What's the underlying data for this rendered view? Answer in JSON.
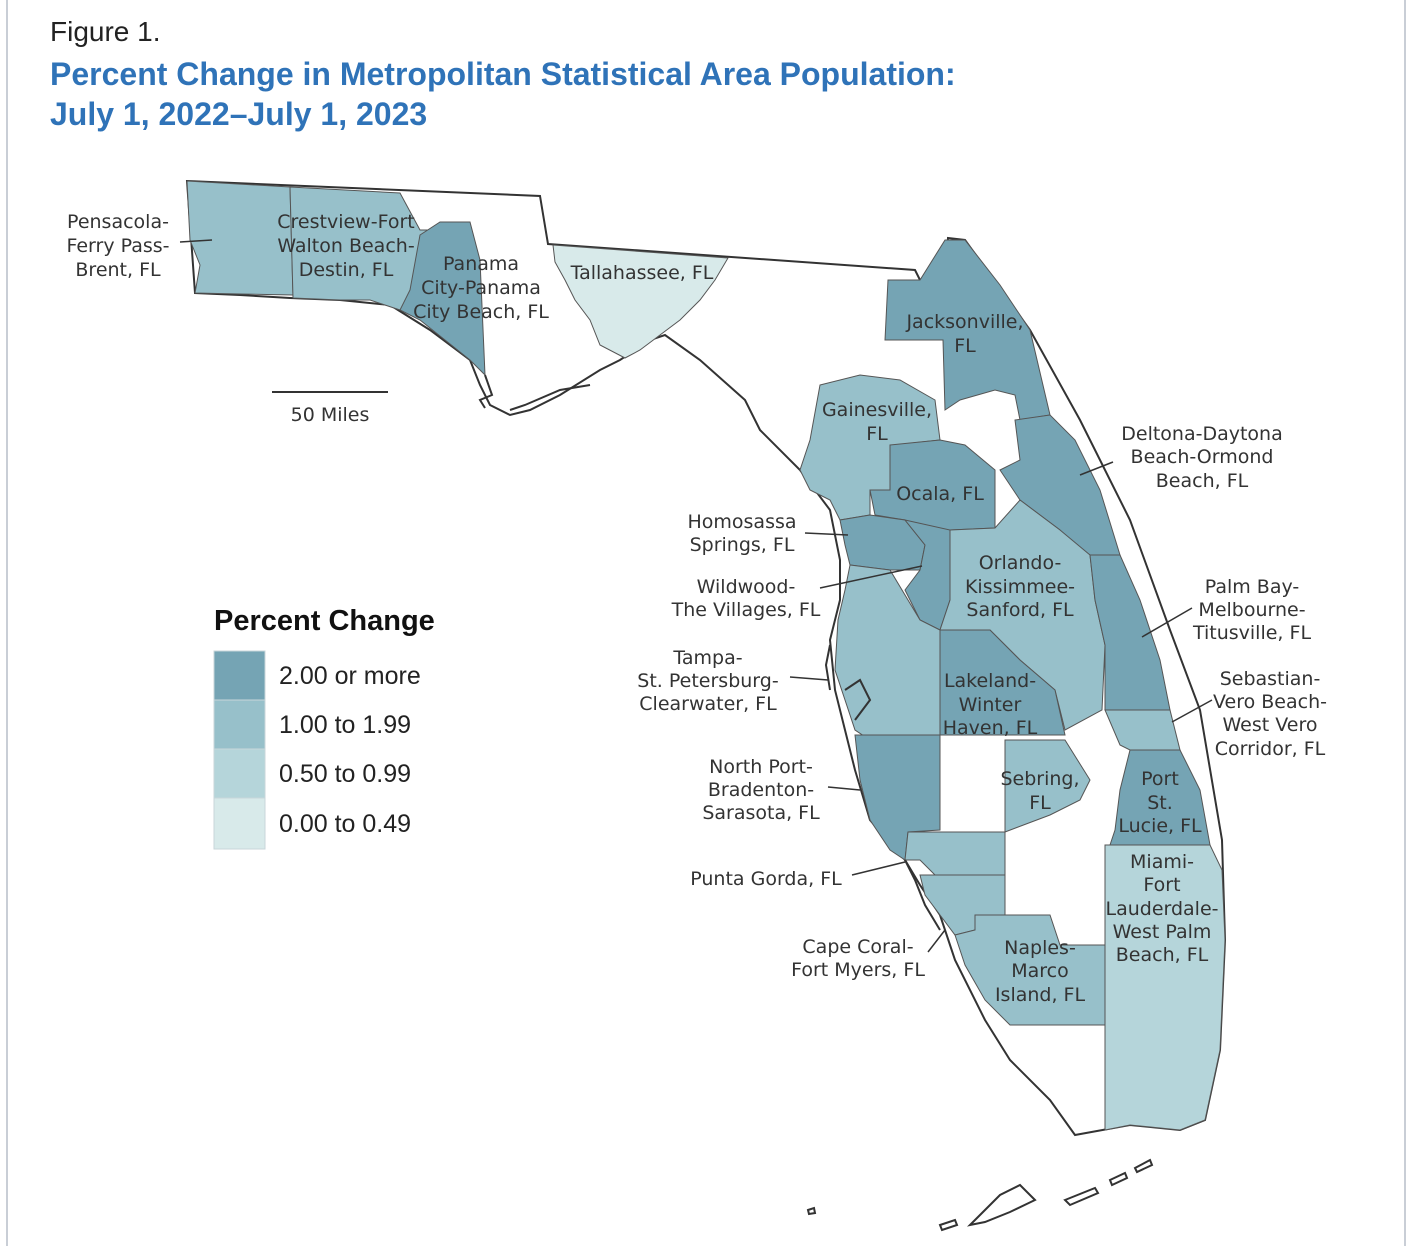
{
  "figure_label": "Figure 1.",
  "title_lines": [
    "Percent Change in Metropolitan Statistical Area Population:",
    "July 1, 2022–July 1, 2023"
  ],
  "legend": {
    "title": "Percent Change",
    "items": [
      {
        "label": "2.00 or more",
        "color": "#75a4b4"
      },
      {
        "label": "1.00 to 1.99",
        "color": "#97c0ca"
      },
      {
        "label": "0.50 to 0.99",
        "color": "#b5d5da"
      },
      {
        "label": "0.00 to 0.49",
        "color": "#d8eaea"
      }
    ]
  },
  "scale_bar": {
    "label": "50 Miles"
  },
  "colors": {
    "non_metro": "#ffffff",
    "border": "#333333",
    "title": "#2f73b8"
  },
  "areas": [
    {
      "id": "pensacola",
      "lines": [
        "Pensacola-",
        "Ferry Pass-",
        "Brent, FL"
      ],
      "class": "1.00 to 1.99"
    },
    {
      "id": "crestview",
      "lines": [
        "Crestview-Fort",
        "Walton Beach-",
        "Destin, FL"
      ],
      "class": "1.00 to 1.99"
    },
    {
      "id": "panama-city",
      "lines": [
        "Panama",
        "City-Panama",
        "City Beach, FL"
      ],
      "class": "2.00 or more"
    },
    {
      "id": "tallahassee",
      "lines": [
        "Tallahassee, FL"
      ],
      "class": "0.00 to 0.49"
    },
    {
      "id": "jacksonville",
      "lines": [
        "Jacksonville,",
        "FL"
      ],
      "class": "2.00 or more"
    },
    {
      "id": "gainesville",
      "lines": [
        "Gainesville,",
        "FL"
      ],
      "class": "1.00 to 1.99"
    },
    {
      "id": "deltona",
      "lines": [
        "Deltona-Daytona",
        "Beach-Ormond",
        "Beach, FL"
      ],
      "class": "2.00 or more"
    },
    {
      "id": "ocala",
      "lines": [
        "Ocala, FL"
      ],
      "class": "2.00 or more"
    },
    {
      "id": "homosassa",
      "lines": [
        "Homosassa",
        "Springs, FL"
      ],
      "class": "2.00 or more"
    },
    {
      "id": "wildwood",
      "lines": [
        "Wildwood-",
        "The Villages, FL"
      ],
      "class": "2.00 or more"
    },
    {
      "id": "orlando",
      "lines": [
        "Orlando-",
        "Kissimmee-",
        "Sanford, FL"
      ],
      "class": "1.00 to 1.99"
    },
    {
      "id": "palm-bay",
      "lines": [
        "Palm Bay-",
        "Melbourne-",
        "Titusville, FL"
      ],
      "class": "2.00 or more"
    },
    {
      "id": "tampa",
      "lines": [
        "Tampa-",
        "St. Petersburg-",
        "Clearwater, FL"
      ],
      "class": "1.00 to 1.99"
    },
    {
      "id": "lakeland",
      "lines": [
        "Lakeland-",
        "Winter",
        "Haven, FL"
      ],
      "class": "2.00 or more"
    },
    {
      "id": "sebastian",
      "lines": [
        "Sebastian-",
        "Vero Beach-",
        "West Vero",
        "Corridor, FL"
      ],
      "class": "1.00 to 1.99"
    },
    {
      "id": "north-port",
      "lines": [
        "North Port-",
        "Bradenton-",
        "Sarasota, FL"
      ],
      "class": "2.00 or more"
    },
    {
      "id": "sebring",
      "lines": [
        "Sebring,",
        "FL"
      ],
      "class": "1.00 to 1.99"
    },
    {
      "id": "port-st-lucie",
      "lines": [
        "Port",
        "St.",
        "Lucie, FL"
      ],
      "class": "2.00 or more"
    },
    {
      "id": "punta-gorda",
      "lines": [
        "Punta Gorda, FL"
      ],
      "class": "1.00 to 1.99"
    },
    {
      "id": "miami",
      "lines": [
        "Miami-",
        "Fort",
        "Lauderdale-",
        "West Palm",
        "Beach, FL"
      ],
      "class": "0.50 to 0.99"
    },
    {
      "id": "cape-coral",
      "lines": [
        "Cape Coral-",
        "Fort Myers, FL"
      ],
      "class": "1.00 to 1.99"
    },
    {
      "id": "naples",
      "lines": [
        "Naples-",
        "Marco",
        "Island, FL"
      ],
      "class": "1.00 to 1.99"
    }
  ]
}
